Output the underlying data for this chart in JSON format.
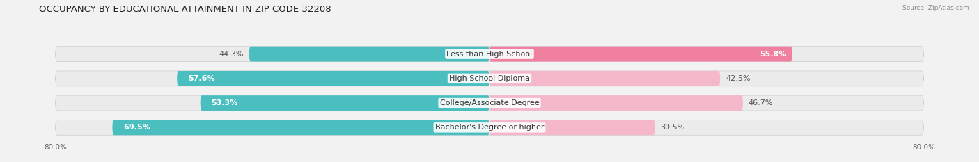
{
  "title": "OCCUPANCY BY EDUCATIONAL ATTAINMENT IN ZIP CODE 32208",
  "source": "Source: ZipAtlas.com",
  "categories": [
    "Less than High School",
    "High School Diploma",
    "College/Associate Degree",
    "Bachelor's Degree or higher"
  ],
  "owner_values": [
    44.3,
    57.6,
    53.3,
    69.5
  ],
  "renter_values": [
    55.8,
    42.5,
    46.7,
    30.5
  ],
  "owner_color": "#4bbfbf",
  "renter_color_strong": "#f080a0",
  "renter_color_weak": "#f5b8cb",
  "renter_colors": [
    "#f080a0",
    "#f5b8cb",
    "#f5b8cb",
    "#f5b8cb"
  ],
  "bar_height": 0.62,
  "background_color": "#f2f2f2",
  "title_fontsize": 9.5,
  "label_fontsize": 8,
  "value_fontsize": 8,
  "tick_fontsize": 7.5,
  "owner_label_color": "white",
  "renter_label_color_inside": "white",
  "renter_label_color_outside": "#555555"
}
